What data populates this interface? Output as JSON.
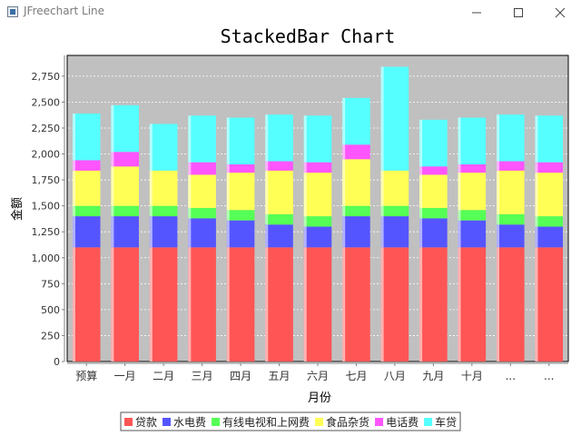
{
  "window": {
    "title": "JFreechart Line",
    "minimize_icon": "minimize-icon",
    "maximize_icon": "maximize-icon",
    "close_icon": "close-icon"
  },
  "chart_data": {
    "type": "bar",
    "stacked": true,
    "title": "StackedBar Chart",
    "xlabel": "月份",
    "ylabel": "金额",
    "ylim": [
      0,
      2950
    ],
    "yticks": [
      0,
      250,
      500,
      750,
      1000,
      1250,
      1500,
      1750,
      2000,
      2250,
      2500,
      2750
    ],
    "ytick_labels": [
      "0",
      "250",
      "500",
      "750",
      "1,000",
      "1,250",
      "1,500",
      "1,750",
      "2,000",
      "2,250",
      "2,500",
      "2,750"
    ],
    "grid": true,
    "legend_position": "bottom",
    "background": "#c0c0c0",
    "categories": [
      "预算",
      "一月",
      "二月",
      "三月",
      "四月",
      "五月",
      "六月",
      "七月",
      "八月",
      "九月",
      "十月",
      "...",
      "..."
    ],
    "series": [
      {
        "name": "贷款",
        "color": "#ff5555",
        "values": [
          1100,
          1100,
          1100,
          1100,
          1100,
          1100,
          1100,
          1100,
          1100,
          1100,
          1100,
          1100,
          1100
        ]
      },
      {
        "name": "水电费",
        "color": "#5555ff",
        "values": [
          300,
          300,
          300,
          280,
          260,
          220,
          200,
          300,
          300,
          280,
          260,
          220,
          200
        ]
      },
      {
        "name": "有线电视和上网费",
        "color": "#55ff55",
        "values": [
          100,
          100,
          100,
          100,
          100,
          100,
          100,
          100,
          100,
          100,
          100,
          100,
          100
        ]
      },
      {
        "name": "食品杂货",
        "color": "#ffff55",
        "values": [
          340,
          380,
          340,
          320,
          360,
          420,
          420,
          450,
          340,
          320,
          360,
          420,
          420
        ]
      },
      {
        "name": "电话费",
        "color": "#ff55ff",
        "values": [
          100,
          140,
          0,
          120,
          80,
          90,
          100,
          140,
          0,
          80,
          80,
          90,
          100
        ]
      },
      {
        "name": "车贷",
        "color": "#55ffff",
        "values": [
          450,
          450,
          450,
          450,
          450,
          450,
          450,
          450,
          1000,
          450,
          450,
          450,
          450
        ]
      }
    ]
  }
}
